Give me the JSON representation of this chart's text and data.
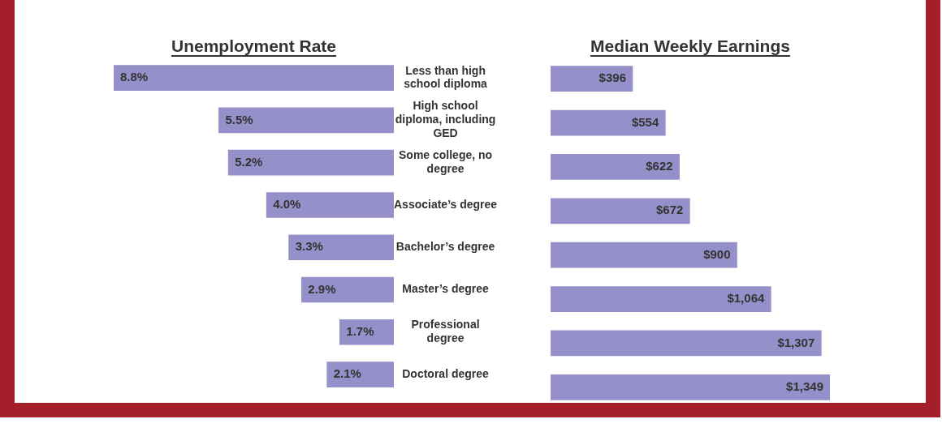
{
  "chart_data": [
    {
      "type": "bar",
      "orientation": "horizontal",
      "title": "Unemployment Rate",
      "categories": [
        "Less than high school diploma",
        "High school diploma, including GED",
        "Some college, no degree",
        "Associate’s degree",
        "Bachelor’s degree",
        "Master’s degree",
        "Professional degree",
        "Doctoral degree"
      ],
      "values": [
        8.8,
        5.5,
        5.2,
        4.0,
        3.3,
        2.9,
        1.7,
        2.1
      ],
      "value_labels": [
        "8.8%",
        "5.5%",
        "5.2%",
        "4.0%",
        "3.3%",
        "2.9%",
        "1.7%",
        "2.1%"
      ],
      "color": "#9590c9",
      "tick_labels": "y"
    },
    {
      "type": "bar",
      "orientation": "horizontal",
      "title": "Median Weekly Earnings",
      "categories": [
        null,
        null,
        null,
        null,
        null,
        null,
        null,
        null
      ],
      "values": [
        396,
        554,
        622,
        672,
        900,
        1064,
        1307,
        1349
      ],
      "value_labels": [
        "$396",
        "$554",
        "$622",
        "$672",
        "$900",
        "$1,064",
        "$1,307",
        "$1,349"
      ],
      "color": "#9590c9",
      "tick_labels": false
    }
  ]
}
